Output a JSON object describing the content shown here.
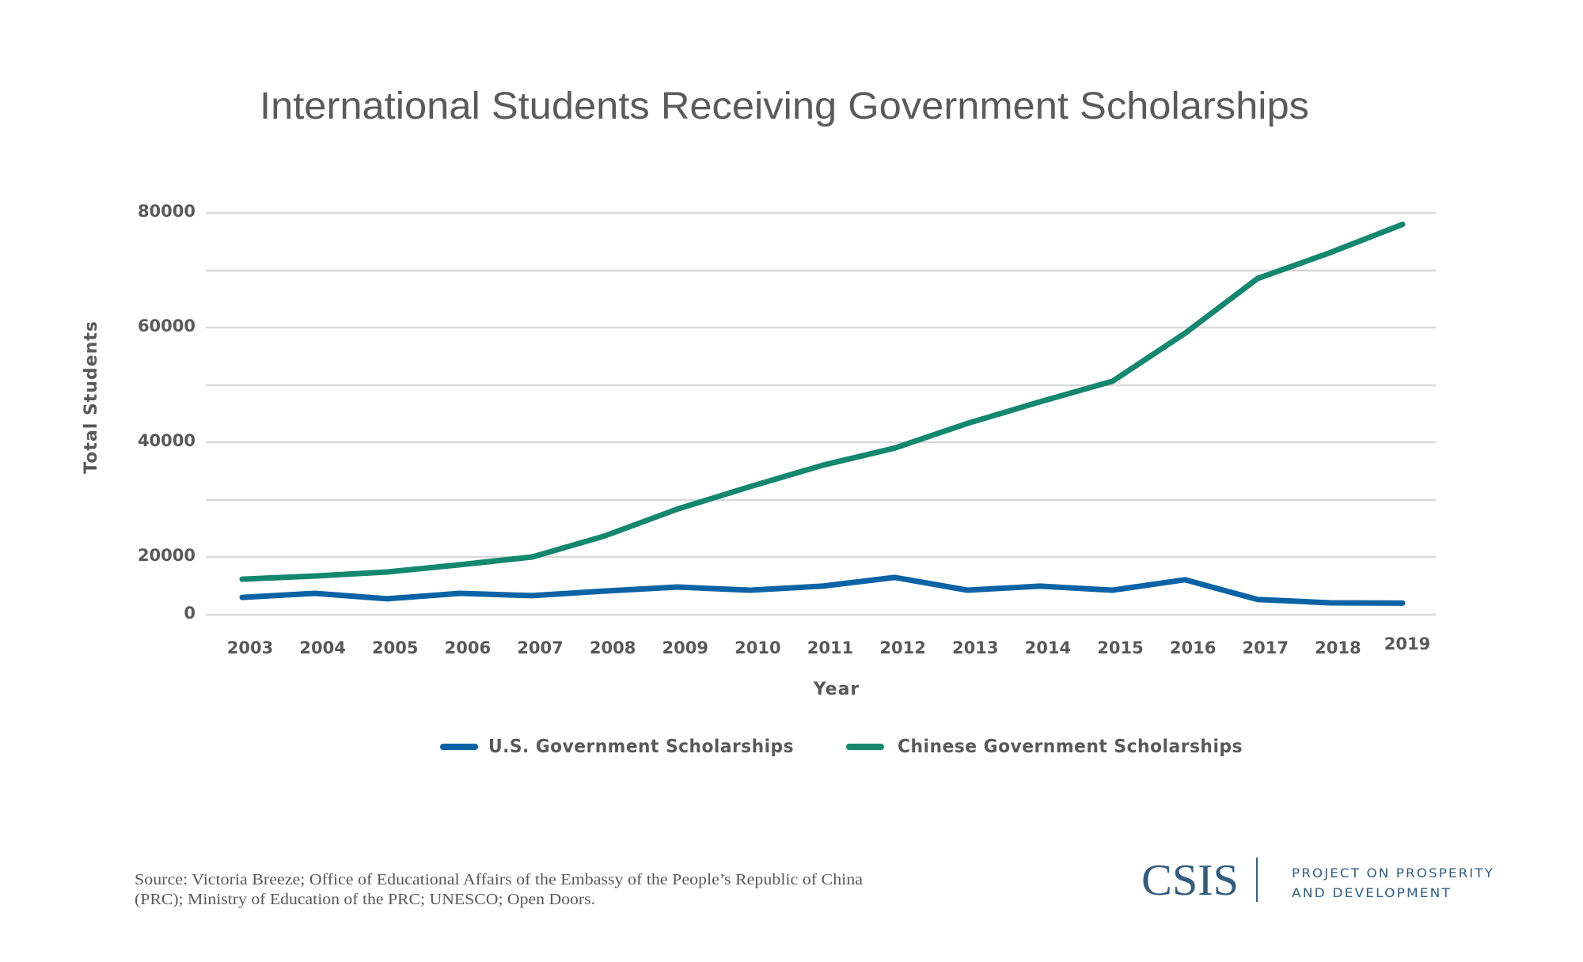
{
  "chart_data": {
    "type": "line",
    "title": "International Students Receiving Government Scholarships",
    "xlabel": "Year",
    "ylabel": "Total Students",
    "x": [
      "2003",
      "2004",
      "2005",
      "2006",
      "2007",
      "2008",
      "2009",
      "2010",
      "2011",
      "2012",
      "2013",
      "2014",
      "2015",
      "2016",
      "2017",
      "2018",
      "2019"
    ],
    "y_ticks": [
      {
        "value": 0,
        "label": "0"
      },
      {
        "value": 20000,
        "label": "20000"
      },
      {
        "value": 40000,
        "label": "40000"
      },
      {
        "value": 60000,
        "label": "60000"
      },
      {
        "value": 80000,
        "label": "80000"
      }
    ],
    "unlabeled_gridlines": [
      30000,
      50000,
      70000
    ],
    "ylim": [
      0,
      80000
    ],
    "grid": true,
    "legend_position": "bottom",
    "series": [
      {
        "name": "U.S. Government Scholarships",
        "color": "#0b63a5",
        "values": [
          6000,
          7400,
          5500,
          7400,
          6600,
          8200,
          9600,
          8500,
          9900,
          12900,
          8500,
          9900,
          8500,
          12100,
          5300,
          4100,
          4000
        ]
      },
      {
        "name": "Chinese Government Scholarships",
        "color": "#14876f",
        "values": [
          12300,
          13400,
          14800,
          17300,
          20000,
          23700,
          28400,
          32300,
          36000,
          39000,
          43300,
          47100,
          50700,
          59000,
          68600,
          73100,
          78000
        ]
      }
    ]
  },
  "footer": {
    "source_line1": "Source: Victoria Breeze; Office of Educational Affairs of the Embassy of the People’s Republic of China",
    "source_line2": "(PRC); Ministry of Education of the PRC; UNESCO; Open Doors."
  },
  "logo": {
    "name": "CSIS",
    "subtitle_line1": "PROJECT ON PROSPERITY",
    "subtitle_line2": "AND DEVELOPMENT",
    "color": "#345d7e"
  }
}
